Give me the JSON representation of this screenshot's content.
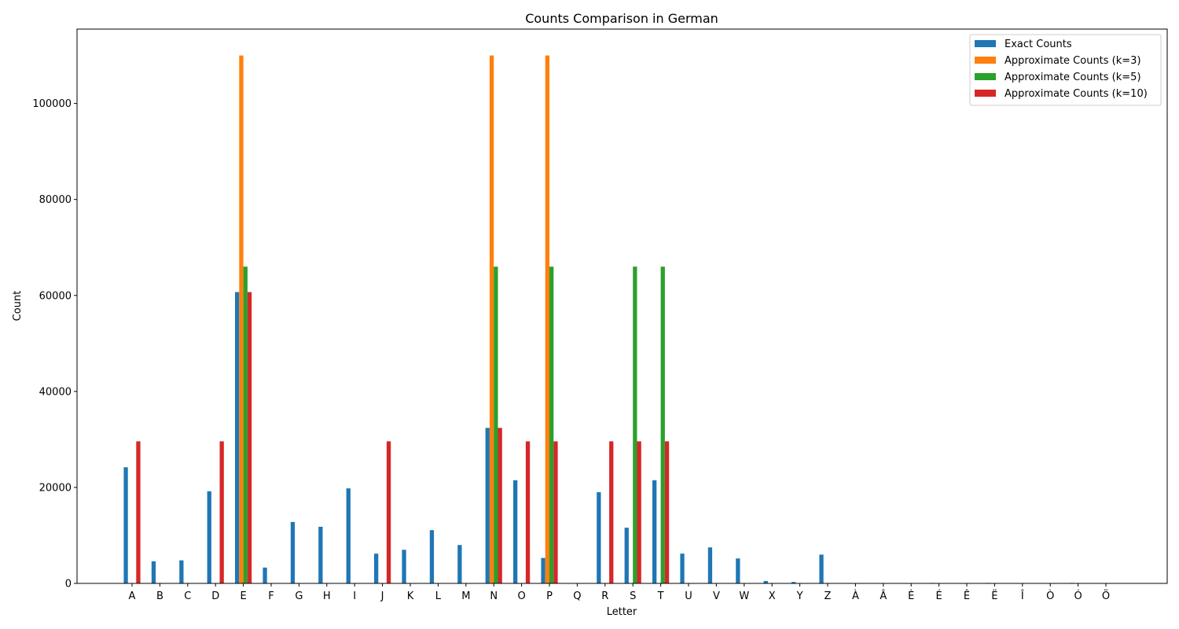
{
  "chart_data": {
    "type": "bar",
    "title": "Counts Comparison in German",
    "xlabel": "Letter",
    "ylabel": "Count",
    "ylim": [
      0,
      115500
    ],
    "yticks": [
      0,
      20000,
      40000,
      60000,
      80000,
      100000
    ],
    "legend_position": "top-right",
    "grid": false,
    "categories": [
      "A",
      "B",
      "C",
      "D",
      "E",
      "F",
      "G",
      "H",
      "I",
      "J",
      "K",
      "L",
      "M",
      "N",
      "O",
      "P",
      "Q",
      "R",
      "S",
      "T",
      "U",
      "V",
      "W",
      "X",
      "Y",
      "Z",
      "À",
      "Â",
      "È",
      "É",
      "Ê",
      "Ë",
      "Î",
      "Ò",
      "Ó",
      "Ö"
    ],
    "series": [
      {
        "name": "Exact Counts",
        "color": "#1f77b4",
        "values": [
          24200,
          4600,
          4800,
          19200,
          60700,
          3300,
          12800,
          11800,
          19800,
          6200,
          7000,
          11100,
          8000,
          32400,
          21500,
          5300,
          0,
          19000,
          11600,
          21500,
          6200,
          7500,
          5200,
          500,
          300,
          6000,
          0,
          0,
          0,
          100,
          0,
          100,
          0,
          0,
          100,
          0
        ]
      },
      {
        "name": "Approximate Counts (k=3)",
        "color": "#ff7f0e",
        "values": [
          0,
          0,
          0,
          0,
          110000,
          0,
          0,
          0,
          0,
          0,
          0,
          0,
          0,
          110000,
          0,
          110000,
          0,
          0,
          0,
          0,
          0,
          0,
          0,
          0,
          0,
          0,
          0,
          0,
          0,
          0,
          0,
          0,
          0,
          0,
          0,
          0
        ]
      },
      {
        "name": "Approximate Counts (k=5)",
        "color": "#2ca02c",
        "values": [
          0,
          0,
          0,
          0,
          66000,
          0,
          0,
          0,
          0,
          0,
          0,
          0,
          0,
          66000,
          0,
          66000,
          0,
          0,
          66000,
          66000,
          0,
          0,
          0,
          0,
          0,
          0,
          0,
          0,
          0,
          0,
          0,
          0,
          0,
          0,
          0,
          0
        ]
      },
      {
        "name": "Approximate Counts (k=10)",
        "color": "#d62728",
        "values": [
          29600,
          0,
          0,
          29600,
          60700,
          0,
          0,
          0,
          0,
          29600,
          0,
          0,
          0,
          32400,
          29600,
          29600,
          0,
          29600,
          29600,
          29600,
          0,
          0,
          0,
          0,
          0,
          0,
          0,
          0,
          0,
          0,
          0,
          0,
          0,
          0,
          0,
          0
        ]
      }
    ]
  }
}
